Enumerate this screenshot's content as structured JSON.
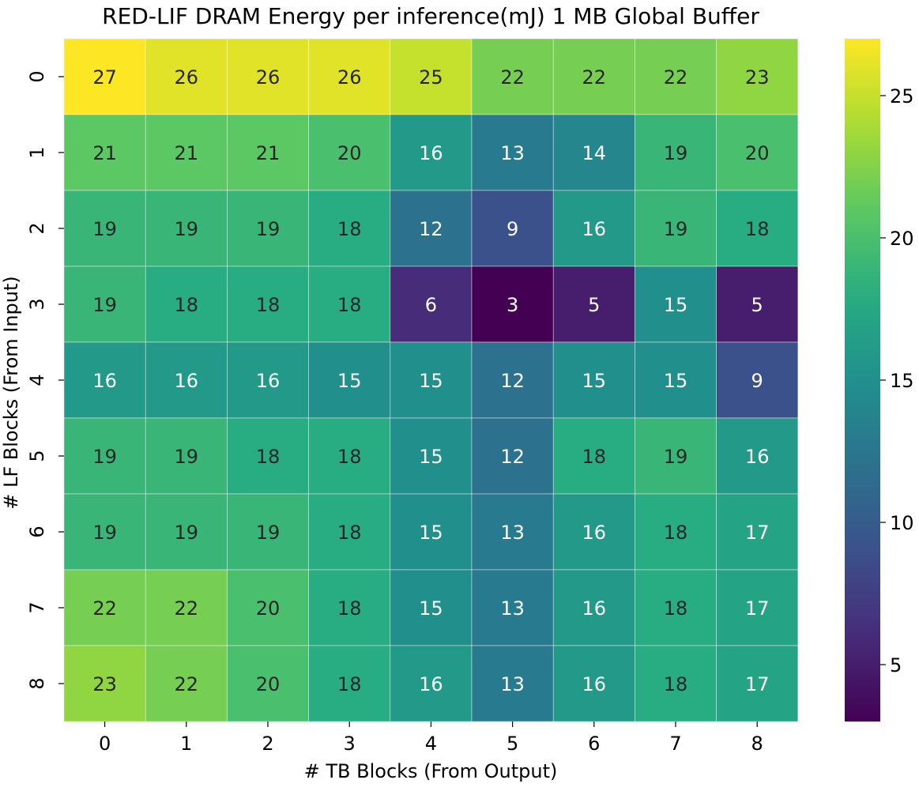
{
  "chart_data": {
    "type": "heatmap",
    "title": "RED-LIF DRAM Energy per inference(mJ) 1 MB Global Buffer",
    "xlabel": "# TB Blocks (From Output)",
    "ylabel": "# LF Blocks (From Input)",
    "x_categories": [
      "0",
      "1",
      "2",
      "3",
      "4",
      "5",
      "6",
      "7",
      "8"
    ],
    "y_categories": [
      "0",
      "1",
      "2",
      "3",
      "4",
      "5",
      "6",
      "7",
      "8"
    ],
    "values": [
      [
        27,
        26,
        26,
        26,
        25,
        22,
        22,
        22,
        23
      ],
      [
        21,
        21,
        21,
        20,
        16,
        13,
        14,
        19,
        20
      ],
      [
        19,
        19,
        19,
        18,
        12,
        9,
        16,
        19,
        18
      ],
      [
        19,
        18,
        18,
        18,
        6,
        3,
        5,
        15,
        5
      ],
      [
        16,
        16,
        16,
        15,
        15,
        12,
        15,
        15,
        9
      ],
      [
        19,
        19,
        18,
        18,
        15,
        12,
        18,
        19,
        16
      ],
      [
        19,
        19,
        19,
        18,
        15,
        13,
        16,
        18,
        17
      ],
      [
        22,
        22,
        20,
        18,
        15,
        13,
        16,
        18,
        17
      ],
      [
        23,
        22,
        20,
        18,
        16,
        13,
        16,
        18,
        17
      ]
    ],
    "colormap": "viridis",
    "vmin": 3,
    "vmax": 27,
    "colorbar_ticks": [
      5,
      10,
      15,
      20,
      25
    ],
    "grid": true
  }
}
